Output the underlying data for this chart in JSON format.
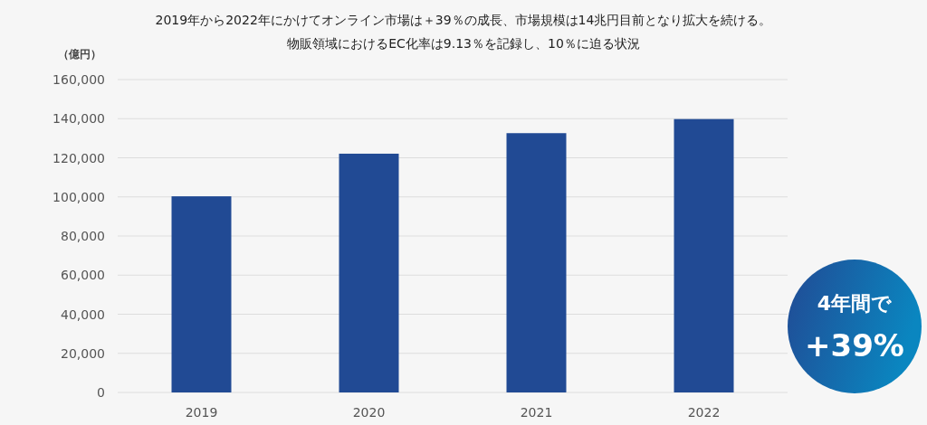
{
  "chart_data": {
    "type": "bar",
    "title": "2019年から2022年にかけてオンライン市場は＋39％の成長、市場規模は14兆円目前となり拡大を続ける。",
    "subtitle": "物販領域におけるEC化率は9.13％を記録し、10％に迫る状況",
    "ylabel": "（億円）",
    "categories": [
      "2019",
      "2020",
      "2021",
      "2022"
    ],
    "values": [
      100300,
      122100,
      132600,
      139800
    ],
    "color": "#214a94",
    "ylim": [
      0,
      160000
    ],
    "yticks": [
      0,
      {
        "value": 20000,
        "label": "20,000"
      },
      {
        "value": 40000,
        "label": "40,000"
      },
      {
        "value": 60000,
        "label": "60,000"
      },
      {
        "value": 80000,
        "label": "80,000"
      },
      {
        "value": 100000,
        "label": "100,000"
      },
      {
        "value": 120000,
        "label": "120,000"
      },
      {
        "value": 140000,
        "label": "140,000"
      },
      {
        "value": 160000,
        "label": "160,000"
      }
    ],
    "grid": "y",
    "annotations": [
      "4年間で",
      "+39%"
    ]
  }
}
